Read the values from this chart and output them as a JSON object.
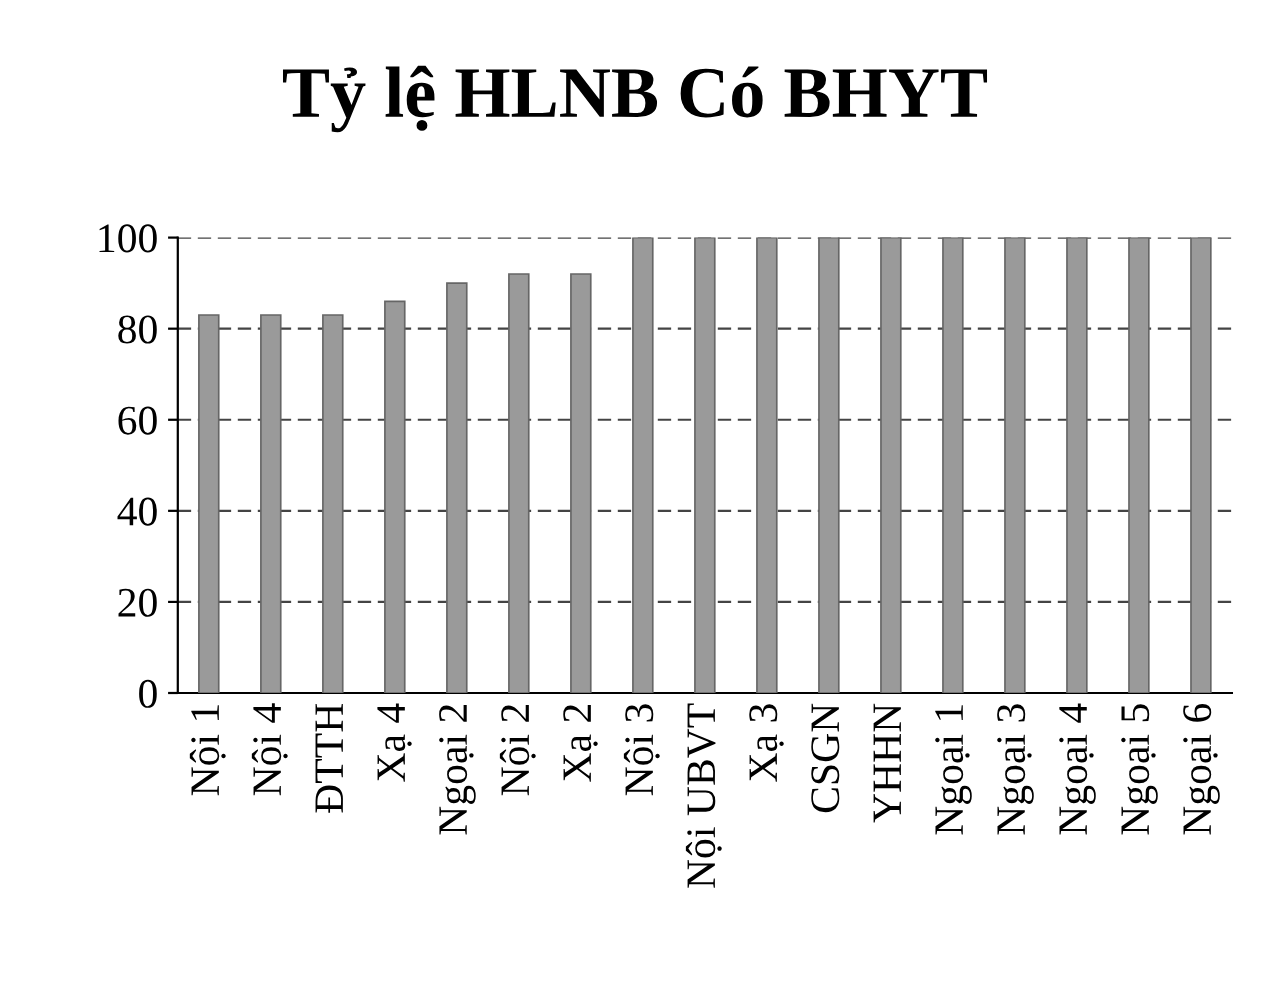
{
  "chart_data": {
    "type": "bar",
    "title": "Tỷ lệ HLNB Có BHYT",
    "categories": [
      "Nội 1",
      "Nội 4",
      "ĐTTH",
      "Xạ 4",
      "Ngoại 2",
      "Nội 2",
      "Xạ 2",
      "Nội 3",
      "Nội UBVT",
      "Xạ 3",
      "CSGN",
      "YHHN",
      "Ngoại 1",
      "Ngoại 3",
      "Ngoại 4",
      "Ngoại 5",
      "Ngoại 6"
    ],
    "values": [
      83,
      83,
      83,
      86,
      90,
      92,
      92,
      100,
      100,
      100,
      100,
      100,
      100,
      100,
      100,
      100,
      100
    ],
    "color": "#9a9a9a",
    "ylim": [
      0,
      100
    ],
    "yticks": [
      0,
      20,
      40,
      60,
      80,
      100
    ],
    "grid": "y",
    "legend": false
  }
}
